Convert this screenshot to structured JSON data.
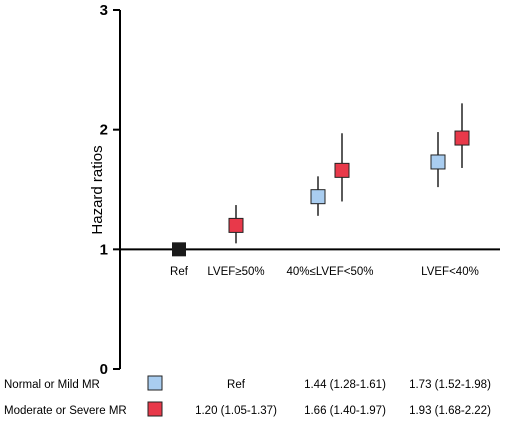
{
  "chart_data": {
    "type": "scatter",
    "ylabel": "Hazard ratios",
    "ylim": [
      0,
      3
    ],
    "yticks": [
      "0",
      "1",
      "2",
      "3"
    ],
    "categories": [
      "Ref",
      "LVEF≥50%",
      "40%≤LVEF<50%",
      "LVEF<40%"
    ],
    "reference_line": 1,
    "reference_point": {
      "category": "Ref",
      "value": 1.0,
      "color": "#1a1a1a"
    },
    "series": [
      {
        "name": "Normal or Mild MR",
        "color": "#a9cdf0",
        "points": [
          {
            "category": "40%≤LVEF<50%",
            "value": 1.44,
            "low": 1.28,
            "high": 1.61
          },
          {
            "category": "LVEF<40%",
            "value": 1.73,
            "low": 1.52,
            "high": 1.98
          }
        ]
      },
      {
        "name": "Moderate or Severe MR",
        "color": "#e8394a",
        "points": [
          {
            "category": "LVEF≥50%",
            "value": 1.2,
            "low": 1.05,
            "high": 1.37
          },
          {
            "category": "40%≤LVEF<50%",
            "value": 1.66,
            "low": 1.4,
            "high": 1.97
          },
          {
            "category": "LVEF<40%",
            "value": 1.93,
            "low": 1.68,
            "high": 2.22
          }
        ]
      }
    ]
  },
  "table": {
    "rows": [
      {
        "label": "Normal or Mild MR",
        "color": "#a9cdf0",
        "cells": [
          "Ref",
          "1.44 (1.28-1.61)",
          "1.73 (1.52-1.98)"
        ]
      },
      {
        "label": "Moderate or Severe MR",
        "color": "#e8394a",
        "cells": [
          "1.20 (1.05-1.37)",
          "1.66 (1.40-1.97)",
          "1.93 (1.68-2.22)"
        ]
      }
    ]
  }
}
